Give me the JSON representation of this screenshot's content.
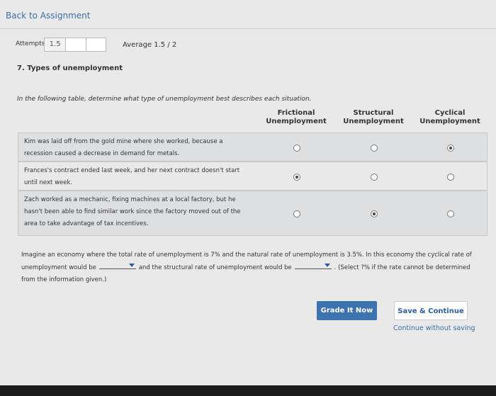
{
  "nav": {
    "back": "Back to Assignment"
  },
  "attempts": {
    "label": "Attempts",
    "value": "1.5",
    "average": "Average 1.5 / 2"
  },
  "question": {
    "title": "7. Types of unemployment",
    "instruction": "In the following table, determine what type of unemployment best describes each situation.",
    "table": {
      "headers": [
        "Frictional Unemployment",
        "Structural Unemployment",
        "Cyclical Unemployment"
      ],
      "rows": [
        {
          "situation": "Kim was laid off from the gold mine where she worked, because a recession caused a decrease in demand for metals.",
          "selected": 2
        },
        {
          "situation": "Frances's contract ended last week, and her next contract doesn't start until next week.",
          "selected": 0
        },
        {
          "situation": "Zach worked as a mechanic, fixing machines at a local factory, but he hasn't been able to find similar work since the factory moved out of the area to take advantage of tax incentives.",
          "selected": 1
        }
      ]
    },
    "paragraph": [
      "Imagine an economy where the total rate of unemployment is 7% and the natural rate of unemployment is 3.5%. In this economy the cyclical rate of unemployment would be",
      "and the structural rate of unemployment would be",
      ". (Select ?% if the rate cannot be determined from the information given.)"
    ]
  },
  "actions": {
    "grade": "Grade It Now",
    "save": "Save & Continue",
    "continue": "Continue without saving"
  }
}
